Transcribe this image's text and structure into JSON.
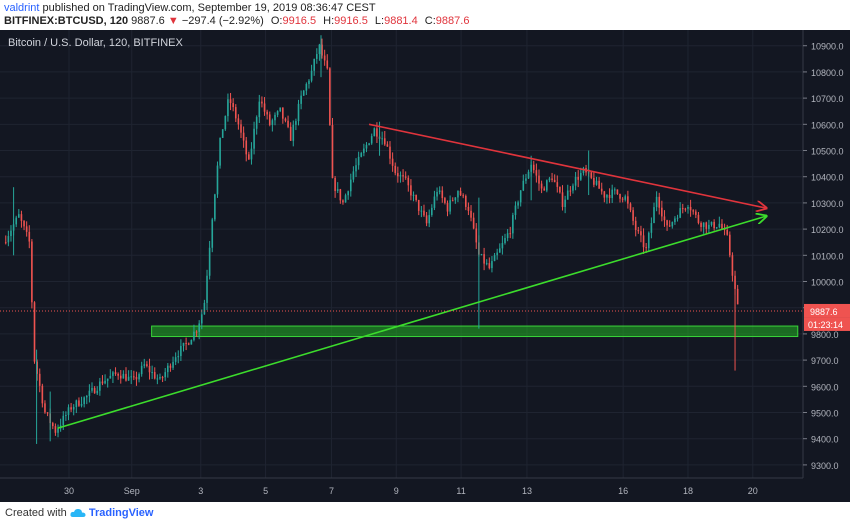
{
  "header": {
    "author": "valdrint",
    "published_text": "published on TradingView.com, September 19, 2019 08:36:47 CEST",
    "symbol": "BITFINEX:BTCUSD, 120",
    "last": "9887.6",
    "change": "−297.4 (−2.92%)",
    "o_label": "O:",
    "o_value": "9916.5",
    "h_label": "H:",
    "h_value": "9916.5",
    "l_label": "L:",
    "l_value": "9881.4",
    "c_label": "C:",
    "c_value": "9887.6"
  },
  "footer": {
    "created_with": "Created with",
    "brand": "TradingView"
  },
  "colors": {
    "background": "#131722",
    "up": "#26a69a",
    "down": "#ef5350",
    "resistance": "#e0343c",
    "support": "#3cdc2c",
    "zone": "#22b022",
    "price_label": "#ef5350"
  },
  "chart_data": {
    "type": "candlestick",
    "title": "Bitcoin / U.S. Dollar, 120, BITFINEX",
    "x_tick_labels": [
      "30",
      "Sep",
      "3",
      "5",
      "7",
      "9",
      "11",
      "13",
      "16",
      "18",
      "20"
    ],
    "y_tick_labels": [
      "9300.0",
      "9400.0",
      "9500.0",
      "9600.0",
      "9700.0",
      "9800.0",
      "9900.0",
      "10000.0",
      "10100.0",
      "10200.0",
      "10300.0",
      "10400.0",
      "10500.0",
      "10600.0",
      "10700.0",
      "10800.0",
      "10900.0"
    ],
    "ylim": [
      9250,
      10960
    ],
    "current_price_label": "9887.6",
    "countdown_label": "01:23:14",
    "price_path": [
      [
        0,
        10150
      ],
      [
        1.5,
        10250
      ],
      [
        2.5,
        10150
      ],
      [
        3,
        9700
      ],
      [
        4,
        9500
      ],
      [
        5,
        9430
      ],
      [
        6.5,
        9520
      ],
      [
        8,
        9560
      ],
      [
        9.5,
        9620
      ],
      [
        11,
        9650
      ],
      [
        12.5,
        9620
      ],
      [
        13.5,
        9680
      ],
      [
        15,
        9620
      ],
      [
        16.5,
        9720
      ],
      [
        17.5,
        9760
      ],
      [
        18.5,
        9820
      ],
      [
        19.2,
        9900
      ],
      [
        20,
        10250
      ],
      [
        20.8,
        10550
      ],
      [
        21.6,
        10700
      ],
      [
        22.5,
        10600
      ],
      [
        23.5,
        10450
      ],
      [
        24.5,
        10700
      ],
      [
        25.5,
        10600
      ],
      [
        26.5,
        10650
      ],
      [
        27.5,
        10550
      ],
      [
        28.5,
        10700
      ],
      [
        29.5,
        10800
      ],
      [
        30.2,
        10900
      ],
      [
        31,
        10800
      ],
      [
        31.5,
        10380
      ],
      [
        32.5,
        10300
      ],
      [
        33.5,
        10420
      ],
      [
        34.5,
        10500
      ],
      [
        35.5,
        10580
      ],
      [
        36.5,
        10540
      ],
      [
        37.5,
        10420
      ],
      [
        38.5,
        10380
      ],
      [
        39.5,
        10300
      ],
      [
        40.5,
        10220
      ],
      [
        41.5,
        10350
      ],
      [
        42.5,
        10280
      ],
      [
        43.5,
        10350
      ],
      [
        44.5,
        10280
      ],
      [
        45.5,
        10100
      ],
      [
        46.5,
        10050
      ],
      [
        47.5,
        10120
      ],
      [
        48.5,
        10200
      ],
      [
        49.5,
        10350
      ],
      [
        50.5,
        10450
      ],
      [
        51.5,
        10350
      ],
      [
        52.5,
        10400
      ],
      [
        53.5,
        10300
      ],
      [
        54.5,
        10380
      ],
      [
        55.5,
        10420
      ],
      [
        56.5,
        10380
      ],
      [
        57.5,
        10330
      ],
      [
        58.5,
        10340
      ],
      [
        59.5,
        10320
      ],
      [
        60.5,
        10200
      ],
      [
        61.5,
        10120
      ],
      [
        62.5,
        10330
      ],
      [
        63.5,
        10200
      ],
      [
        64.5,
        10260
      ],
      [
        65.5,
        10300
      ],
      [
        66.5,
        10230
      ],
      [
        67.5,
        10210
      ],
      [
        68.5,
        10220
      ],
      [
        69.3,
        10160
      ],
      [
        69.8,
        10020
      ],
      [
        70.3,
        9887.6
      ]
    ],
    "wicks": [
      {
        "x": 1.0,
        "high": 10360,
        "low": 10100
      },
      {
        "x": 3.2,
        "high": 9740,
        "low": 9380
      },
      {
        "x": 4.5,
        "high": 9580,
        "low": 9390
      },
      {
        "x": 30.4,
        "high": 10940,
        "low": 10780
      },
      {
        "x": 36,
        "high": 10610,
        "low": 10480
      },
      {
        "x": 45.5,
        "high": 10320,
        "low": 9820
      },
      {
        "x": 50.5,
        "high": 10480,
        "low": 10310
      },
      {
        "x": 56,
        "high": 10500,
        "low": 10330
      },
      {
        "x": 70,
        "high": 10020,
        "low": 9660
      }
    ],
    "drawings": {
      "resistance_line": [
        [
          35,
          10600
        ],
        [
          73,
          10280
        ]
      ],
      "support_line": [
        [
          5.2,
          9440
        ],
        [
          73,
          10250
        ]
      ],
      "support_zone": {
        "x0": 14.2,
        "x1": 76,
        "top": 9830,
        "bottom": 9790
      }
    },
    "x_tick_positions": [
      6.3,
      12.3,
      18.9,
      25.1,
      31.4,
      37.6,
      43.8,
      50.1,
      59.3,
      65.5,
      71.7
    ]
  }
}
